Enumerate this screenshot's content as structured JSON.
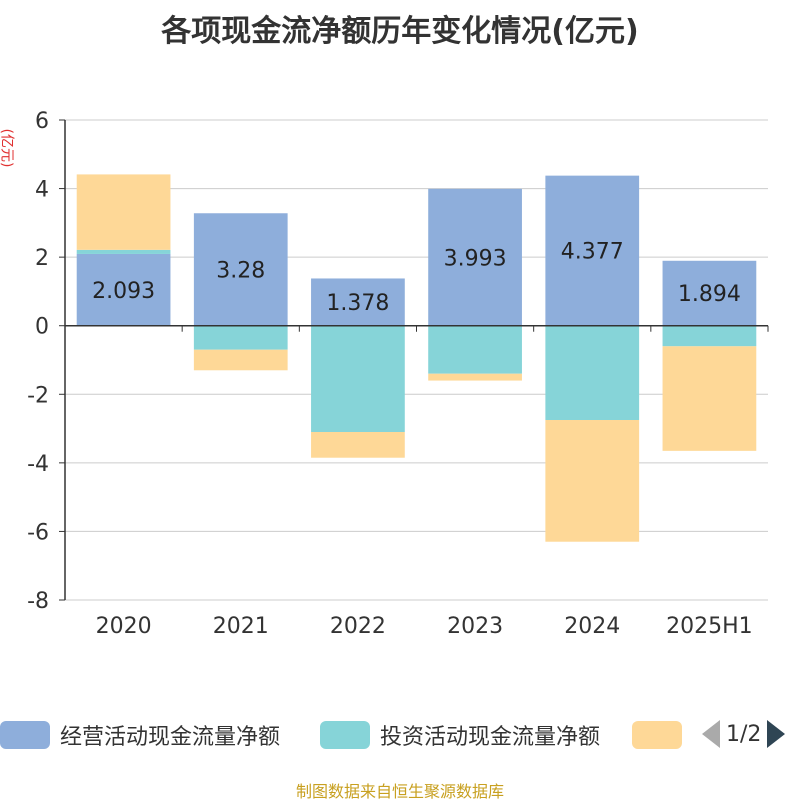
{
  "chart_data": {
    "type": "bar",
    "stacked": true,
    "title": "各项现金流净额历年变化情况(亿元)",
    "ylabel": "(亿元)",
    "categories": [
      "2020",
      "2021",
      "2022",
      "2023",
      "2024",
      "2025H1"
    ],
    "ylim": [
      -8,
      6
    ],
    "yticks": [
      6,
      4,
      2,
      0,
      -2,
      -4,
      -6,
      -8
    ],
    "grid": true,
    "series": [
      {
        "name": "经营活动现金流量净额",
        "color": "#8eaedb",
        "values": [
          2.093,
          3.28,
          1.378,
          3.993,
          4.377,
          1.894
        ],
        "labels": [
          "2.093",
          "3.28",
          "1.378",
          "3.993",
          "4.377",
          "1.894"
        ]
      },
      {
        "name": "投资活动现金流量净额",
        "color": "#86d4d8",
        "values": [
          0.12,
          -0.7,
          -3.1,
          -1.4,
          -2.75,
          -0.6
        ]
      },
      {
        "name": "",
        "color": "#fed897",
        "values": [
          2.2,
          -0.6,
          -0.75,
          -0.2,
          -3.55,
          -3.05
        ]
      }
    ],
    "legend_position": "bottom"
  },
  "legend": {
    "page_indicator": "1/2"
  },
  "source_text": "制图数据来自恒生聚源数据库"
}
